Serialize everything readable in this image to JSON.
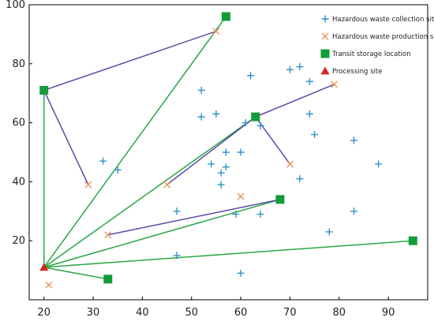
{
  "chart_data": {
    "type": "scatter",
    "xlim": [
      17,
      98
    ],
    "ylim": [
      0,
      100
    ],
    "xticks": [
      20,
      30,
      40,
      50,
      60,
      70,
      80,
      90
    ],
    "yticks": [
      20,
      40,
      60,
      80,
      100
    ],
    "grid": false,
    "legend_position": "top-right",
    "series": [
      {
        "name": "Hazardous waste collection site",
        "marker": "plus",
        "color": "#2e93c8",
        "points": [
          [
            32,
            47
          ],
          [
            35,
            44
          ],
          [
            47,
            30
          ],
          [
            47,
            15
          ],
          [
            52,
            71
          ],
          [
            52,
            62
          ],
          [
            54,
            46
          ],
          [
            55,
            63
          ],
          [
            56,
            39
          ],
          [
            56,
            43
          ],
          [
            57,
            45
          ],
          [
            57,
            50
          ],
          [
            59,
            29
          ],
          [
            60,
            50
          ],
          [
            60,
            9
          ],
          [
            61,
            60
          ],
          [
            62,
            76
          ],
          [
            64,
            59
          ],
          [
            64,
            29
          ],
          [
            70,
            78
          ],
          [
            72,
            79
          ],
          [
            72,
            41
          ],
          [
            74,
            74
          ],
          [
            74,
            63
          ],
          [
            75,
            56
          ],
          [
            78,
            23
          ],
          [
            83,
            54
          ],
          [
            83,
            30
          ],
          [
            88,
            46
          ]
        ]
      },
      {
        "name": "Hazardous waste production site",
        "marker": "x",
        "color": "#e8955a",
        "points": [
          [
            55,
            91
          ],
          [
            29,
            39
          ],
          [
            45,
            39
          ],
          [
            33,
            22
          ],
          [
            60,
            35
          ],
          [
            70,
            46
          ],
          [
            79,
            73
          ],
          [
            21,
            5
          ]
        ]
      },
      {
        "name": "Transit storage location",
        "marker": "square",
        "color": "#129c38",
        "points": [
          [
            20,
            71
          ],
          [
            57,
            96
          ],
          [
            63,
            62
          ],
          [
            68,
            34
          ],
          [
            95,
            20
          ],
          [
            33,
            7
          ]
        ]
      },
      {
        "name": "Processing site",
        "marker": "triangle",
        "color": "#d92323",
        "points": [
          [
            20,
            11
          ]
        ]
      }
    ],
    "routes": [
      {
        "color": "#27a644",
        "segments": [
          [
            [
              20,
              11
            ],
            [
              57,
              96
            ]
          ],
          [
            [
              20,
              11
            ],
            [
              20,
              71
            ]
          ],
          [
            [
              20,
              11
            ],
            [
              63,
              62
            ]
          ],
          [
            [
              20,
              11
            ],
            [
              68,
              34
            ]
          ],
          [
            [
              20,
              11
            ],
            [
              95,
              20
            ]
          ],
          [
            [
              20,
              11
            ],
            [
              33,
              7
            ]
          ]
        ]
      },
      {
        "color": "#5b4aa8",
        "segments": [
          [
            [
              20,
              71
            ],
            [
              55,
              91
            ]
          ],
          [
            [
              20,
              71
            ],
            [
              29,
              39
            ]
          ],
          [
            [
              63,
              62
            ],
            [
              45,
              39
            ]
          ],
          [
            [
              63,
              62
            ],
            [
              70,
              46
            ]
          ],
          [
            [
              63,
              62
            ],
            [
              79,
              73
            ]
          ],
          [
            [
              68,
              34
            ],
            [
              33,
              22
            ]
          ]
        ]
      }
    ]
  }
}
